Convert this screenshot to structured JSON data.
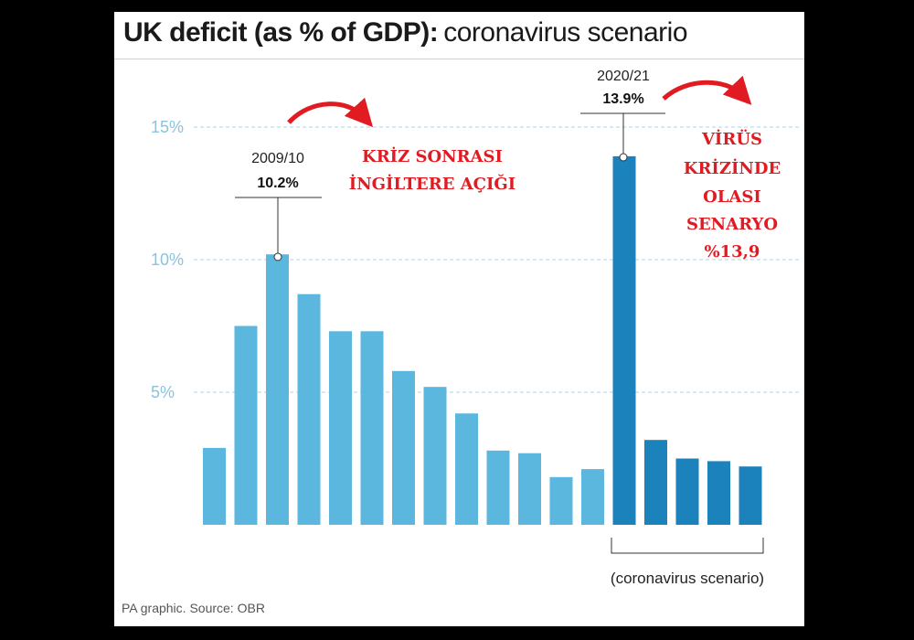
{
  "header": {
    "title_bold": "UK deficit (as % of GDP):",
    "title_rest": "coronavirus scenario"
  },
  "footer": {
    "source": "PA graphic. Source: OBR"
  },
  "annotations": {
    "left_year": "2009/10",
    "left_value": "10.2%",
    "right_year": "2020/21",
    "right_value": "13.9%",
    "scenario_label": "(coronavirus scenario)"
  },
  "overlay": {
    "left_text_lines": [
      "KRİZ SONRASI",
      "İNGİLTERE AÇIĞI"
    ],
    "right_text_lines": [
      "VİRÜS",
      "KRİZİNDE",
      "OLASI",
      "SENARYO",
      "%13,9"
    ],
    "color": "#e11b22"
  },
  "colors": {
    "historic_bar": "#5bb7de",
    "scenario_bar": "#1c82bc",
    "gridline": "#a9d4e8"
  },
  "chart_data": {
    "type": "bar",
    "title": "UK deficit (as % of GDP): coronavirus scenario",
    "xlabel": "",
    "ylabel": "",
    "ylim": [
      0,
      15
    ],
    "yticks": [
      5,
      10,
      15
    ],
    "ytick_labels": [
      "5%",
      "10%",
      "15%"
    ],
    "grid": true,
    "series": [
      {
        "values": [
          2.9,
          7.5,
          10.2,
          8.7,
          7.3,
          7.3,
          5.8,
          5.2,
          4.2,
          2.8,
          2.7,
          1.8,
          2.1,
          null,
          null,
          null,
          null,
          null
        ]
      },
      {
        "values": [
          null,
          null,
          null,
          null,
          null,
          null,
          null,
          null,
          null,
          null,
          null,
          null,
          null,
          13.9,
          3.2,
          2.5,
          2.4,
          2.2
        ]
      }
    ]
  }
}
